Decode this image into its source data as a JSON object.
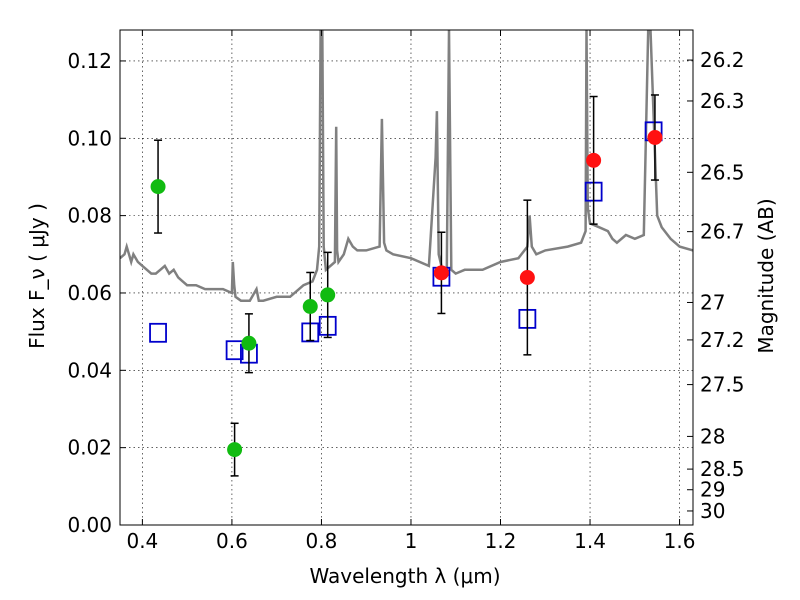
{
  "chart_data": {
    "type": "scatter",
    "xlabel": "Wavelength  λ (μm)",
    "ylabel": "Flux  F_ν  ( μJy )",
    "ylabel_right": "Magnitude (AB)",
    "xlim": [
      0.35,
      1.63
    ],
    "ylim": [
      0.0,
      0.128
    ],
    "x_ticks": [
      0.4,
      0.6,
      0.8,
      1.0,
      1.2,
      1.4,
      1.6
    ],
    "x_tick_labels": [
      "0.4",
      "0.6",
      "0.8",
      "1",
      "1.2",
      "1.4",
      "1.6"
    ],
    "y_ticks": [
      0.0,
      0.02,
      0.04,
      0.06,
      0.08,
      0.1,
      0.12
    ],
    "y_tick_labels": [
      "0.00",
      "0.02",
      "0.04",
      "0.06",
      "0.08",
      "0.10",
      "0.12"
    ],
    "right_ticks": [
      "26.2",
      "26.3",
      "26.5",
      "26.7",
      "27",
      "27.2",
      "27.5",
      "28",
      "28.5",
      "29",
      "30"
    ],
    "grid": true,
    "colors": {
      "green": "#11bb11",
      "red": "#ff1111",
      "model_box": "#0000cc",
      "spectrum": "#808080",
      "errorbar": "#000000"
    },
    "series": [
      {
        "marker": "circle-green",
        "points": [
          {
            "x": 0.435,
            "y": 0.0875,
            "err": 0.012
          },
          {
            "x": 0.606,
            "y": 0.0195,
            "err": 0.0068
          },
          {
            "x": 0.638,
            "y": 0.047,
            "err": 0.0076
          },
          {
            "x": 0.775,
            "y": 0.0565,
            "err": 0.0088
          },
          {
            "x": 0.814,
            "y": 0.0595,
            "err": 0.011
          }
        ]
      },
      {
        "marker": "circle-red",
        "points": [
          {
            "x": 1.068,
            "y": 0.0652,
            "err": 0.0105
          },
          {
            "x": 1.26,
            "y": 0.064,
            "err": 0.02
          },
          {
            "x": 1.408,
            "y": 0.0943,
            "err": 0.0165
          },
          {
            "x": 1.545,
            "y": 0.1002,
            "err": 0.011
          }
        ]
      },
      {
        "marker": "square-blue",
        "points": [
          {
            "x": 0.435,
            "y": 0.0497
          },
          {
            "x": 0.606,
            "y": 0.0452
          },
          {
            "x": 0.638,
            "y": 0.0443
          },
          {
            "x": 0.775,
            "y": 0.0498
          },
          {
            "x": 0.814,
            "y": 0.0515
          },
          {
            "x": 1.068,
            "y": 0.0642
          },
          {
            "x": 1.26,
            "y": 0.0533
          },
          {
            "x": 1.408,
            "y": 0.0862
          },
          {
            "x": 1.542,
            "y": 0.1018
          }
        ]
      }
    ],
    "model_spectrum": {
      "x": [
        0.35,
        0.36,
        0.365,
        0.37,
        0.375,
        0.38,
        0.39,
        0.4,
        0.41,
        0.42,
        0.43,
        0.44,
        0.45,
        0.46,
        0.47,
        0.48,
        0.49,
        0.5,
        0.52,
        0.54,
        0.56,
        0.58,
        0.6,
        0.602,
        0.605,
        0.608,
        0.62,
        0.64,
        0.655,
        0.66,
        0.67,
        0.7,
        0.73,
        0.76,
        0.78,
        0.79,
        0.795,
        0.798,
        0.802,
        0.805,
        0.81,
        0.83,
        0.833,
        0.835,
        0.838,
        0.85,
        0.86,
        0.87,
        0.88,
        0.9,
        0.93,
        0.935,
        0.94,
        0.945,
        0.96,
        1.0,
        1.04,
        1.055,
        1.058,
        1.062,
        1.07,
        1.08,
        1.085,
        1.09,
        1.1,
        1.12,
        1.16,
        1.2,
        1.24,
        1.26,
        1.265,
        1.27,
        1.28,
        1.3,
        1.35,
        1.38,
        1.39,
        1.392,
        1.395,
        1.4,
        1.42,
        1.44,
        1.45,
        1.46,
        1.48,
        1.5,
        1.52,
        1.53,
        1.535,
        1.55,
        1.56,
        1.58,
        1.6,
        1.63
      ],
      "y": [
        0.069,
        0.07,
        0.072,
        0.07,
        0.068,
        0.07,
        0.068,
        0.067,
        0.066,
        0.065,
        0.065,
        0.066,
        0.067,
        0.065,
        0.066,
        0.064,
        0.063,
        0.062,
        0.062,
        0.061,
        0.061,
        0.061,
        0.06,
        0.068,
        0.062,
        0.059,
        0.058,
        0.058,
        0.061,
        0.058,
        0.058,
        0.059,
        0.059,
        0.062,
        0.063,
        0.066,
        0.072,
        0.128,
        0.128,
        0.072,
        0.066,
        0.068,
        0.103,
        0.071,
        0.068,
        0.07,
        0.074,
        0.072,
        0.071,
        0.071,
        0.072,
        0.105,
        0.073,
        0.071,
        0.07,
        0.069,
        0.067,
        0.095,
        0.107,
        0.07,
        0.066,
        0.066,
        0.128,
        0.066,
        0.065,
        0.066,
        0.066,
        0.068,
        0.069,
        0.072,
        0.08,
        0.072,
        0.07,
        0.071,
        0.072,
        0.073,
        0.076,
        0.128,
        0.082,
        0.078,
        0.077,
        0.076,
        0.074,
        0.073,
        0.075,
        0.074,
        0.075,
        0.128,
        0.128,
        0.08,
        0.077,
        0.074,
        0.072,
        0.071
      ]
    }
  }
}
